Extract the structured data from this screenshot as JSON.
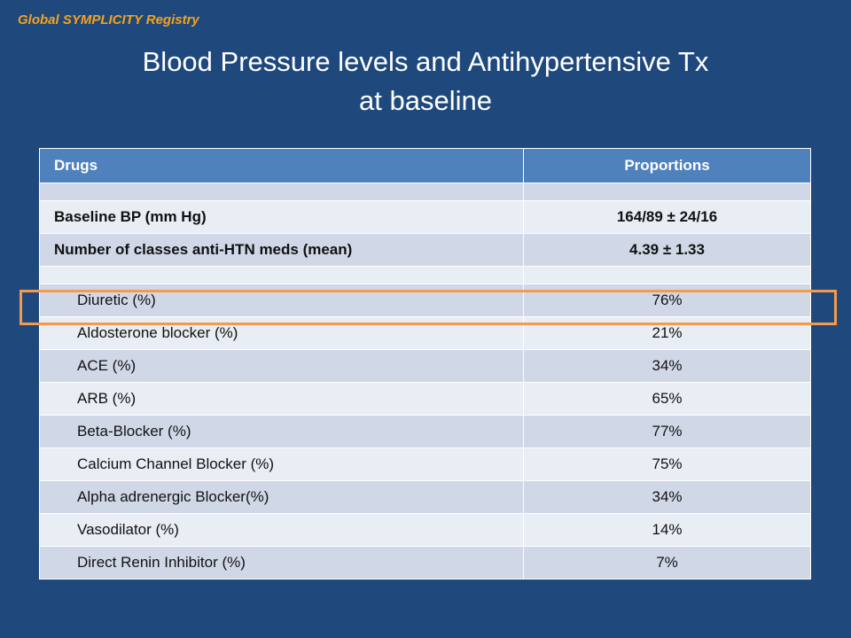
{
  "header": {
    "registry_label": "Global SYMPLICITY Registry",
    "title_line1": "Blood Pressure levels and Antihypertensive Tx",
    "title_line2": "at baseline"
  },
  "table": {
    "col_drugs": "Drugs",
    "col_proportions": "Proportions",
    "baseline_bp_label": "Baseline BP (mm Hg)",
    "baseline_bp_value": "164/89 ± 24/16",
    "num_classes_label": "Number of classes anti-HTN meds (mean)",
    "num_classes_value": "4.39 ± 1.33",
    "drug_rows": [
      {
        "label": "Diuretic (%)",
        "value": "76%"
      },
      {
        "label": "Aldosterone blocker (%)",
        "value": "21%"
      },
      {
        "label": "ACE (%)",
        "value": "34%"
      },
      {
        "label": "ARB (%)",
        "value": "65%"
      },
      {
        "label": "Beta-Blocker (%)",
        "value": "77%"
      },
      {
        "label": "Calcium Channel Blocker (%)",
        "value": "75%"
      },
      {
        "label": "Alpha adrenergic Blocker(%)",
        "value": "34%"
      },
      {
        "label": "Vasodilator (%)",
        "value": "14%"
      },
      {
        "label": "Direct Renin Inhibitor (%)",
        "value": "7%"
      }
    ]
  },
  "colors": {
    "background": "#1f497d",
    "registry_label": "#f6a21b",
    "table_header": "#4f81bd",
    "row_band_dark": "#d0d8e8",
    "row_band_light": "#e9edf4",
    "highlight_box": "#f59a4a"
  }
}
